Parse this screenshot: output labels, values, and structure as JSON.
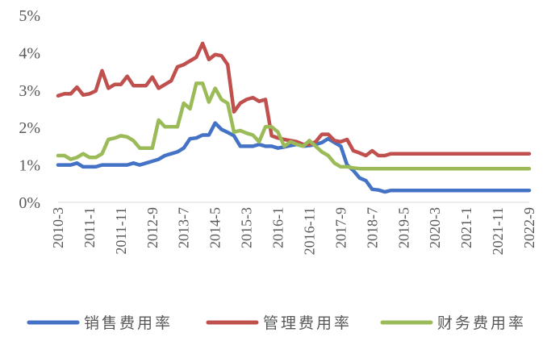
{
  "chart_data": {
    "type": "line",
    "x": [
      "2010-3",
      "2010-5",
      "2010-7",
      "2010-9",
      "2010-11",
      "2011-1",
      "2011-3",
      "2011-5",
      "2011-7",
      "2011-9",
      "2011-11",
      "2012-1",
      "2012-3",
      "2012-5",
      "2012-7",
      "2012-9",
      "2012-11",
      "2013-1",
      "2013-3",
      "2013-5",
      "2013-7",
      "2013-9",
      "2013-11",
      "2014-1",
      "2014-3",
      "2014-5",
      "2014-7",
      "2014-9",
      "2014-11",
      "2015-1",
      "2015-3",
      "2015-5",
      "2015-7",
      "2015-9",
      "2015-11",
      "2016-1",
      "2016-3",
      "2016-5",
      "2016-7",
      "2016-9",
      "2016-11",
      "2017-1",
      "2017-3",
      "2017-5",
      "2017-7",
      "2017-9",
      "2017-11",
      "2018-1",
      "2018-3",
      "2018-5",
      "2018-7",
      "2018-9",
      "2018-11",
      "2019-1",
      "2019-3",
      "2019-5",
      "2019-7",
      "2019-9",
      "2019-11",
      "2020-1",
      "2020-3",
      "2020-5",
      "2020-7",
      "2020-9",
      "2020-11",
      "2021-1",
      "2021-3",
      "2021-5",
      "2021-7",
      "2021-9",
      "2021-11",
      "2022-1",
      "2022-3",
      "2022-5",
      "2022-7",
      "2022-9"
    ],
    "tick_labels": [
      "2010-3",
      "2011-1",
      "2011-11",
      "2012-9",
      "2013-7",
      "2014-5",
      "2015-3",
      "2016-1",
      "2016-11",
      "2017-9",
      "2018-7",
      "2019-5",
      "2020-3",
      "2021-1",
      "2021-11",
      "2022-9"
    ],
    "ytick_labels": [
      "0%",
      "1%",
      "2%",
      "3%",
      "4%",
      "5%"
    ],
    "ylim": [
      0,
      5
    ],
    "title": "",
    "xlabel": "",
    "ylabel": "",
    "grid": false,
    "legend_position": "bottom",
    "series": [
      {
        "name": "销售费用率",
        "color": "#4472C4",
        "values": [
          1.0,
          1.0,
          1.0,
          1.05,
          0.95,
          0.95,
          0.95,
          1.0,
          1.0,
          1.0,
          1.0,
          1.0,
          1.05,
          1.0,
          1.05,
          1.1,
          1.15,
          1.25,
          1.3,
          1.35,
          1.45,
          1.7,
          1.72,
          1.8,
          1.8,
          2.12,
          1.95,
          1.87,
          1.78,
          1.5,
          1.5,
          1.5,
          1.55,
          1.5,
          1.5,
          1.45,
          1.48,
          1.52,
          1.55,
          1.5,
          1.52,
          1.55,
          1.6,
          1.7,
          1.6,
          1.5,
          1.0,
          0.85,
          0.65,
          0.58,
          0.35,
          0.33,
          0.28,
          0.32,
          0.32,
          0.32,
          0.32,
          0.32,
          0.32,
          0.32,
          0.32,
          0.32,
          0.32,
          0.32,
          0.32,
          0.32,
          0.32,
          0.32,
          0.32,
          0.32,
          0.32,
          0.32,
          0.32,
          0.32,
          0.32,
          0.32
        ]
      },
      {
        "name": "管理费用率",
        "color": "#C0504D",
        "values": [
          2.85,
          2.9,
          2.9,
          3.08,
          2.87,
          2.9,
          2.98,
          3.52,
          3.05,
          3.15,
          3.15,
          3.37,
          3.12,
          3.12,
          3.12,
          3.35,
          3.05,
          3.15,
          3.25,
          3.62,
          3.68,
          3.78,
          3.88,
          4.25,
          3.82,
          3.95,
          3.92,
          3.68,
          2.42,
          2.65,
          2.75,
          2.8,
          2.7,
          2.75,
          1.78,
          1.72,
          1.68,
          1.65,
          1.62,
          1.55,
          1.55,
          1.62,
          1.82,
          1.82,
          1.65,
          1.62,
          1.68,
          1.38,
          1.32,
          1.25,
          1.38,
          1.25,
          1.25,
          1.3,
          1.3,
          1.3,
          1.3,
          1.3,
          1.3,
          1.3,
          1.3,
          1.3,
          1.3,
          1.3,
          1.3,
          1.3,
          1.3,
          1.3,
          1.3,
          1.3,
          1.3,
          1.3,
          1.3,
          1.3,
          1.3,
          1.3
        ]
      },
      {
        "name": "财务费用率",
        "color": "#9BBB59",
        "values": [
          1.25,
          1.25,
          1.15,
          1.2,
          1.3,
          1.2,
          1.2,
          1.3,
          1.68,
          1.72,
          1.78,
          1.75,
          1.65,
          1.45,
          1.45,
          1.45,
          2.2,
          2.02,
          2.02,
          2.02,
          2.65,
          2.5,
          3.18,
          3.18,
          2.68,
          3.05,
          2.75,
          2.65,
          1.88,
          1.92,
          1.85,
          1.8,
          1.62,
          2.02,
          2.02,
          1.88,
          1.5,
          1.62,
          1.55,
          1.5,
          1.65,
          1.5,
          1.35,
          1.25,
          1.05,
          0.95,
          0.95,
          0.92,
          0.9,
          0.9,
          0.9,
          0.9,
          0.9,
          0.9,
          0.9,
          0.9,
          0.9,
          0.9,
          0.9,
          0.9,
          0.9,
          0.9,
          0.9,
          0.9,
          0.9,
          0.9,
          0.9,
          0.9,
          0.9,
          0.9,
          0.9,
          0.9,
          0.9,
          0.9,
          0.9,
          0.9
        ]
      }
    ]
  }
}
